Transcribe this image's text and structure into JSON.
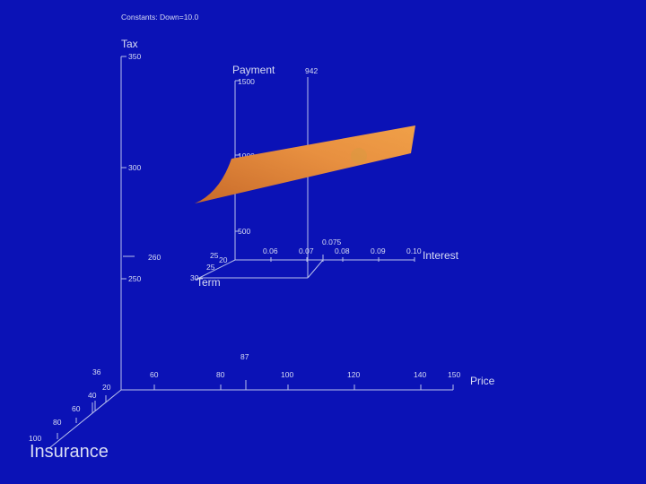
{
  "constants_label": "Constants:  Down=10.0",
  "outer": {
    "tax": {
      "label": "Tax",
      "ticks": [
        "350",
        "300",
        "260",
        "250"
      ],
      "current": "260"
    },
    "price": {
      "label": "Price",
      "ticks": [
        "60",
        "80",
        "100",
        "120",
        "140",
        "150"
      ],
      "current": "87"
    },
    "insurance": {
      "label": "Insurance",
      "ticks": [
        "20",
        "40",
        "60",
        "80",
        "100"
      ],
      "current": "36"
    }
  },
  "inner": {
    "payment": {
      "label": "Payment",
      "ticks": [
        "1500",
        "1000",
        "500"
      ],
      "current": "942"
    },
    "interest": {
      "label": "Interest",
      "ticks": [
        "0.06",
        "0.07",
        "0.08",
        "0.09",
        "0.10"
      ],
      "current": "0.075"
    },
    "term": {
      "label": "Term",
      "ticks": [
        "20",
        "25",
        "30"
      ],
      "current": "25"
    }
  },
  "surface_color": "#e0893a",
  "background_color": "#0b12b6"
}
